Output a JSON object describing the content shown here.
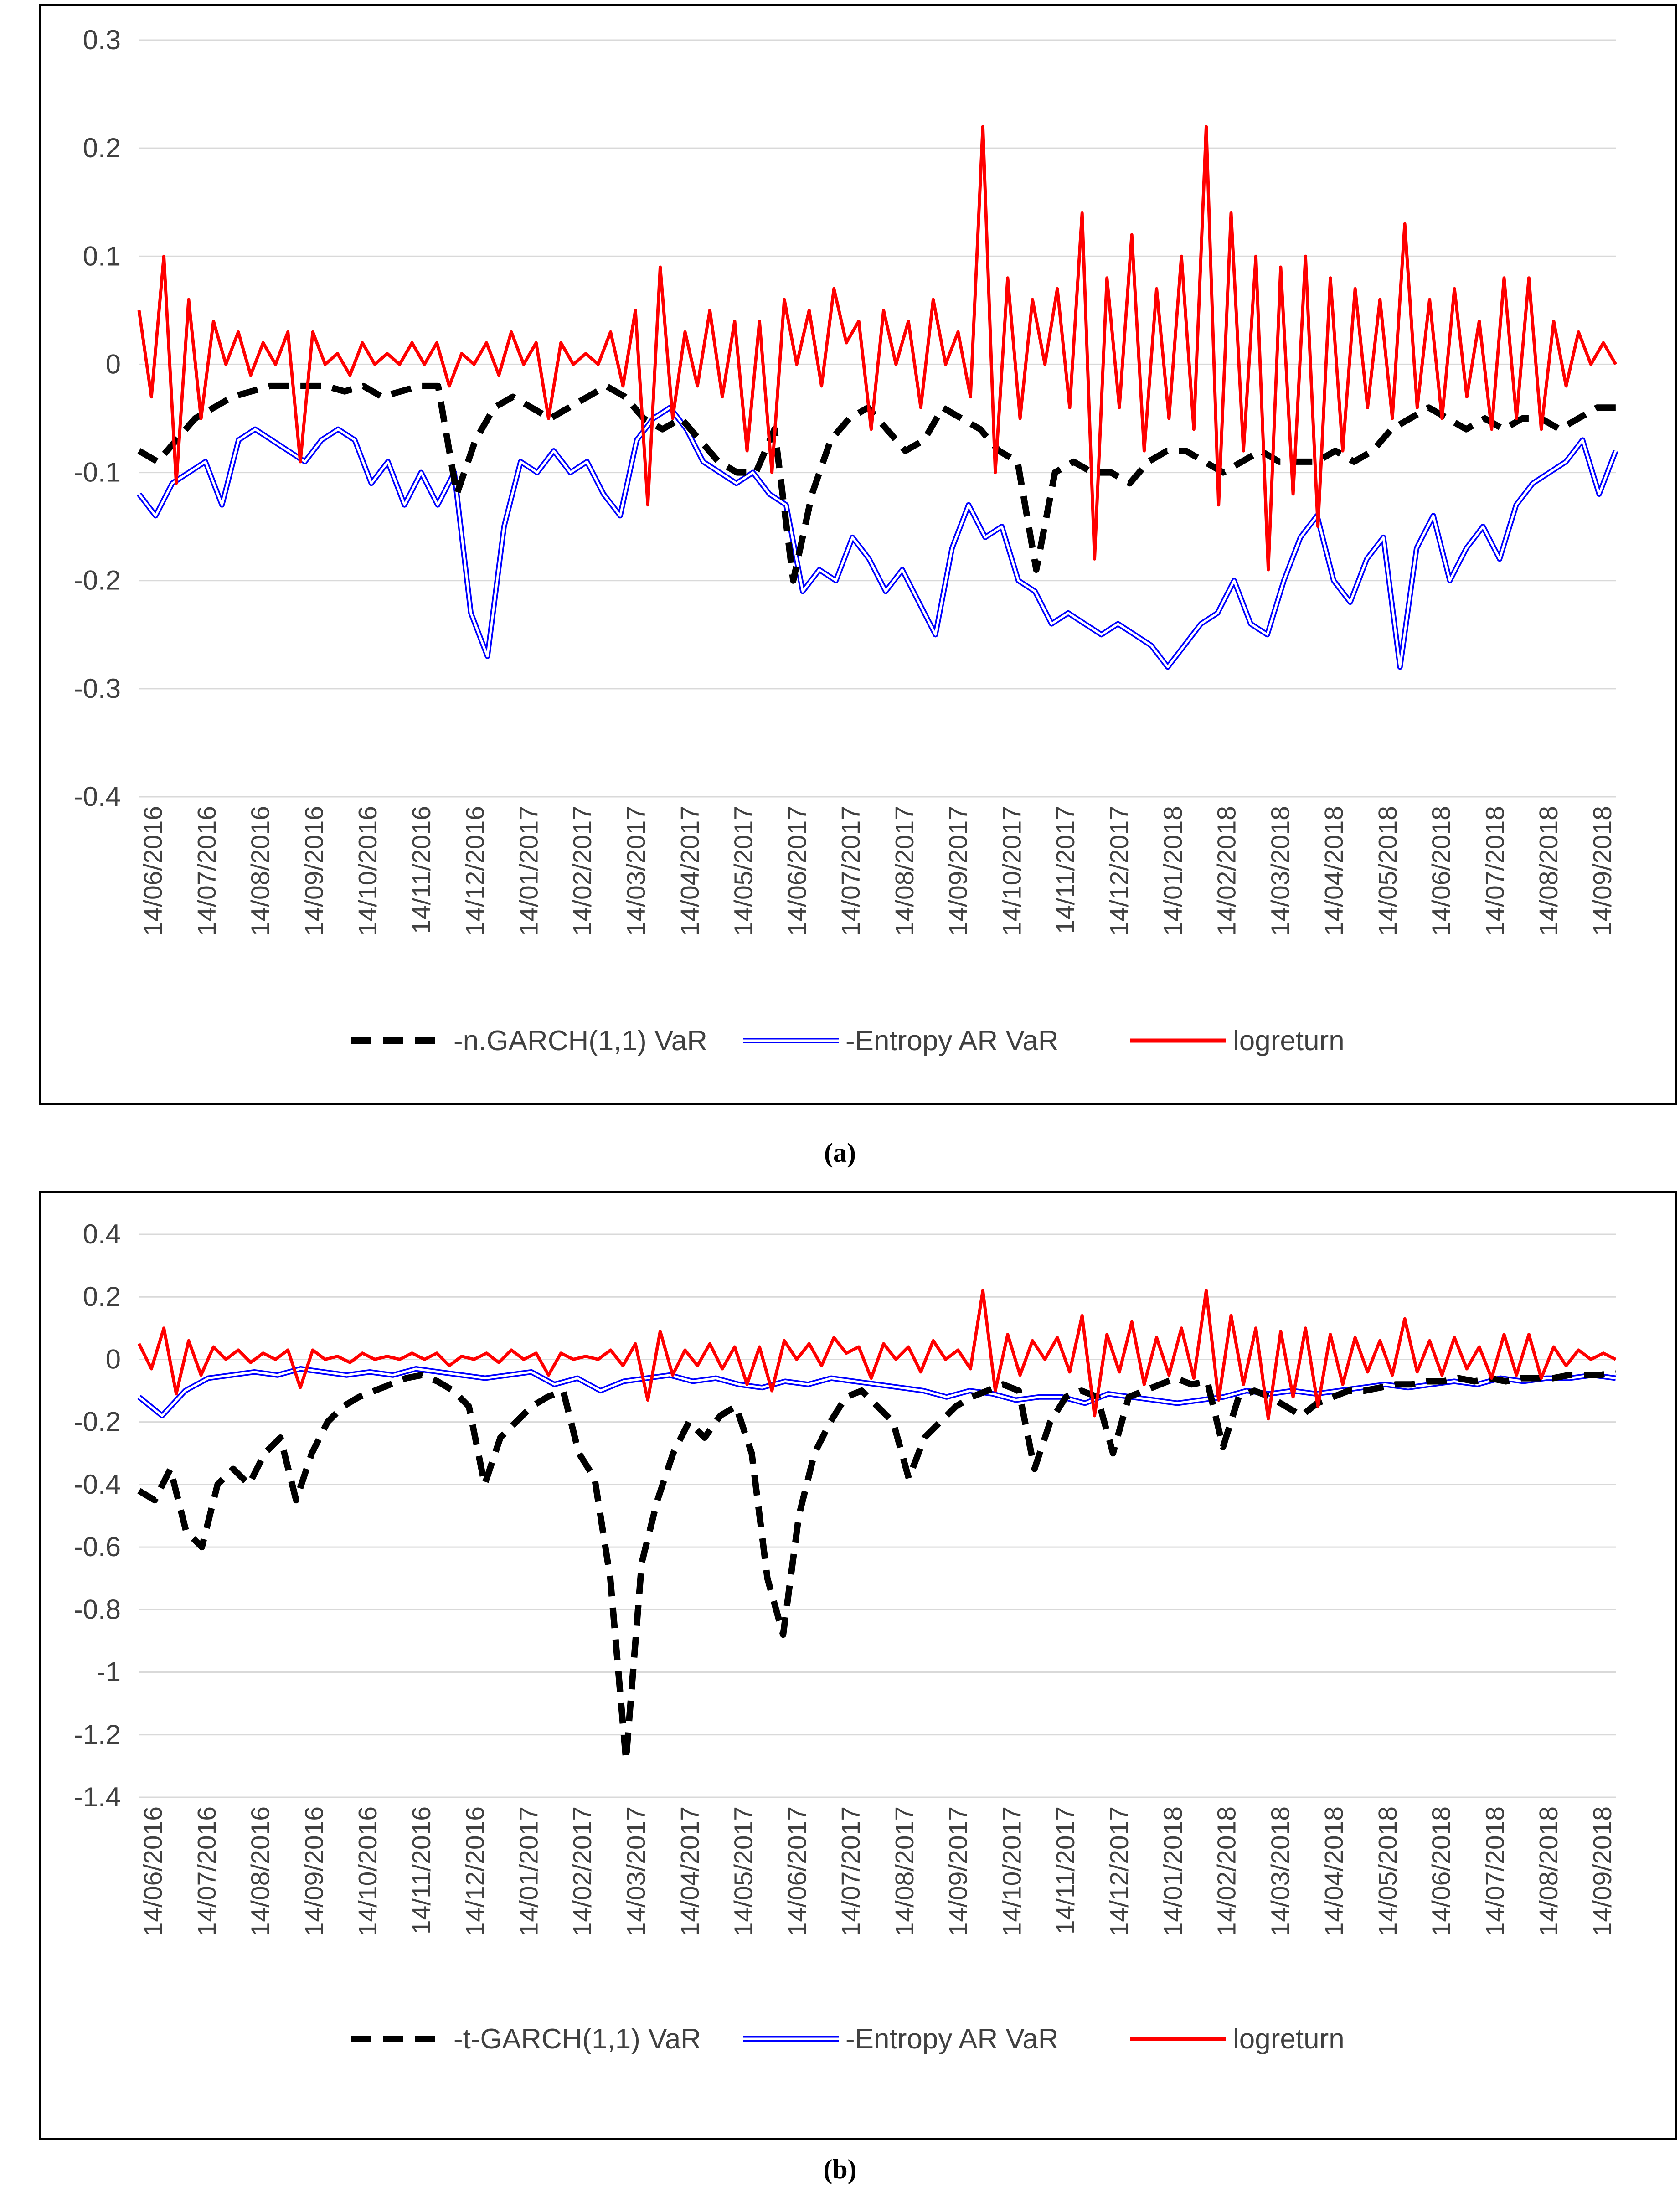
{
  "x_tick_labels": [
    "14/06/2016",
    "14/07/2016",
    "14/08/2016",
    "14/09/2016",
    "14/10/2016",
    "14/11/2016",
    "14/12/2016",
    "14/01/2017",
    "14/02/2017",
    "14/03/2017",
    "14/04/2017",
    "14/05/2017",
    "14/06/2017",
    "14/07/2017",
    "14/08/2017",
    "14/09/2017",
    "14/10/2017",
    "14/11/2017",
    "14/12/2017",
    "14/01/2018",
    "14/02/2018",
    "14/03/2018",
    "14/04/2018",
    "14/05/2018",
    "14/06/2018",
    "14/07/2018",
    "14/08/2018",
    "14/09/2018"
  ],
  "colors": {
    "garch": "#000000",
    "entropy": "#0000ff",
    "logreturn": "#ff0000",
    "grid": "#d9d9d9"
  },
  "chart_data": [
    {
      "panel": "a",
      "caption": "(a)",
      "type": "line",
      "ylim": [
        -0.4,
        0.3
      ],
      "yticks": [
        "0.3",
        "0.2",
        "0.1",
        "0",
        "-0.1",
        "-0.2",
        "-0.3",
        "-0.4"
      ],
      "ytick_values": [
        0.3,
        0.2,
        0.1,
        0,
        -0.1,
        -0.2,
        -0.3,
        -0.4
      ],
      "series": [
        {
          "name": "-n.GARCH(1,1) VaR",
          "style": "dashed",
          "color": "#000000",
          "values": [
            -0.08,
            -0.09,
            -0.07,
            -0.05,
            -0.04,
            -0.03,
            -0.025,
            -0.02,
            -0.02,
            -0.02,
            -0.02,
            -0.025,
            -0.02,
            -0.03,
            -0.025,
            -0.02,
            -0.02,
            -0.12,
            -0.07,
            -0.04,
            -0.03,
            -0.04,
            -0.05,
            -0.04,
            -0.03,
            -0.02,
            -0.03,
            -0.05,
            -0.06,
            -0.05,
            -0.07,
            -0.09,
            -0.1,
            -0.1,
            -0.06,
            -0.2,
            -0.12,
            -0.07,
            -0.05,
            -0.04,
            -0.06,
            -0.08,
            -0.07,
            -0.04,
            -0.05,
            -0.06,
            -0.08,
            -0.09,
            -0.19,
            -0.1,
            -0.09,
            -0.1,
            -0.1,
            -0.11,
            -0.09,
            -0.08,
            -0.08,
            -0.09,
            -0.1,
            -0.09,
            -0.08,
            -0.09,
            -0.09,
            -0.09,
            -0.08,
            -0.09,
            -0.08,
            -0.06,
            -0.05,
            -0.04,
            -0.05,
            -0.06,
            -0.05,
            -0.06,
            -0.05,
            -0.05,
            -0.06,
            -0.05,
            -0.04,
            -0.04
          ]
        },
        {
          "name": "-Entropy AR VaR",
          "style": "double",
          "color": "#0000ff",
          "values": [
            -0.12,
            -0.14,
            -0.11,
            -0.1,
            -0.09,
            -0.13,
            -0.07,
            -0.06,
            -0.07,
            -0.08,
            -0.09,
            -0.07,
            -0.06,
            -0.07,
            -0.11,
            -0.09,
            -0.13,
            -0.1,
            -0.13,
            -0.1,
            -0.23,
            -0.27,
            -0.15,
            -0.09,
            -0.1,
            -0.08,
            -0.1,
            -0.09,
            -0.12,
            -0.14,
            -0.07,
            -0.05,
            -0.04,
            -0.06,
            -0.09,
            -0.1,
            -0.11,
            -0.1,
            -0.12,
            -0.13,
            -0.21,
            -0.19,
            -0.2,
            -0.16,
            -0.18,
            -0.21,
            -0.19,
            -0.22,
            -0.25,
            -0.17,
            -0.13,
            -0.16,
            -0.15,
            -0.2,
            -0.21,
            -0.24,
            -0.23,
            -0.24,
            -0.25,
            -0.24,
            -0.25,
            -0.26,
            -0.28,
            -0.26,
            -0.24,
            -0.23,
            -0.2,
            -0.24,
            -0.25,
            -0.2,
            -0.16,
            -0.14,
            -0.2,
            -0.22,
            -0.18,
            -0.16,
            -0.28,
            -0.17,
            -0.14,
            -0.2,
            -0.17,
            -0.15,
            -0.18,
            -0.13,
            -0.11,
            -0.1,
            -0.09,
            -0.07,
            -0.12,
            -0.08
          ]
        },
        {
          "name": "logreturn",
          "style": "solid",
          "color": "#ff0000",
          "values": [
            0.05,
            -0.03,
            0.1,
            -0.11,
            0.06,
            -0.05,
            0.04,
            0.0,
            0.03,
            -0.01,
            0.02,
            0.0,
            0.03,
            -0.09,
            0.03,
            0.0,
            0.01,
            -0.01,
            0.02,
            0.0,
            0.01,
            0.0,
            0.02,
            0.0,
            0.02,
            -0.02,
            0.01,
            0.0,
            0.02,
            -0.01,
            0.03,
            0.0,
            0.02,
            -0.05,
            0.02,
            0.0,
            0.01,
            0.0,
            0.03,
            -0.02,
            0.05,
            -0.13,
            0.09,
            -0.05,
            0.03,
            -0.02,
            0.05,
            -0.03,
            0.04,
            -0.08,
            0.04,
            -0.1,
            0.06,
            0.0,
            0.05,
            -0.02,
            0.07,
            0.02,
            0.04,
            -0.06,
            0.05,
            0.0,
            0.04,
            -0.04,
            0.06,
            0.0,
            0.03,
            -0.03,
            0.22,
            -0.1,
            0.08,
            -0.05,
            0.06,
            0.0,
            0.07,
            -0.04,
            0.14,
            -0.18,
            0.08,
            -0.04,
            0.12,
            -0.08,
            0.07,
            -0.05,
            0.1,
            -0.06,
            0.22,
            -0.13,
            0.14,
            -0.08,
            0.1,
            -0.19,
            0.09,
            -0.12,
            0.1,
            -0.15,
            0.08,
            -0.08,
            0.07,
            -0.04,
            0.06,
            -0.05,
            0.13,
            -0.04,
            0.06,
            -0.05,
            0.07,
            -0.03,
            0.04,
            -0.06,
            0.08,
            -0.05,
            0.08,
            -0.06,
            0.04,
            -0.02,
            0.03,
            0.0,
            0.02,
            0.0
          ]
        }
      ],
      "legend": [
        "-n.GARCH(1,1) VaR",
        "-Entropy AR VaR",
        "logreturn"
      ],
      "legend_position": "bottom"
    },
    {
      "panel": "b",
      "caption": "(b)",
      "type": "line",
      "ylim": [
        -1.4,
        0.4
      ],
      "yticks": [
        "0.4",
        "0.2",
        "0",
        "-0.2",
        "-0.4",
        "-0.6",
        "-0.8",
        "-1",
        "-1.2",
        "-1.4"
      ],
      "ytick_values": [
        0.4,
        0.2,
        0,
        -0.2,
        -0.4,
        -0.6,
        -0.8,
        -1.0,
        -1.2,
        -1.4
      ],
      "series": [
        {
          "name": "-t-GARCH(1,1) VaR",
          "style": "dashed",
          "color": "#000000",
          "values": [
            -0.42,
            -0.45,
            -0.35,
            -0.55,
            -0.6,
            -0.4,
            -0.35,
            -0.4,
            -0.3,
            -0.25,
            -0.45,
            -0.3,
            -0.2,
            -0.15,
            -0.12,
            -0.1,
            -0.08,
            -0.06,
            -0.05,
            -0.07,
            -0.1,
            -0.15,
            -0.4,
            -0.25,
            -0.2,
            -0.15,
            -0.12,
            -0.1,
            -0.3,
            -0.38,
            -0.7,
            -1.28,
            -0.65,
            -0.45,
            -0.3,
            -0.2,
            -0.25,
            -0.18,
            -0.15,
            -0.3,
            -0.7,
            -0.88,
            -0.5,
            -0.3,
            -0.2,
            -0.12,
            -0.1,
            -0.15,
            -0.2,
            -0.38,
            -0.25,
            -0.2,
            -0.15,
            -0.12,
            -0.1,
            -0.08,
            -0.1,
            -0.35,
            -0.2,
            -0.12,
            -0.1,
            -0.12,
            -0.3,
            -0.12,
            -0.1,
            -0.08,
            -0.06,
            -0.08,
            -0.07,
            -0.28,
            -0.12,
            -0.1,
            -0.12,
            -0.15,
            -0.18,
            -0.14,
            -0.12,
            -0.1,
            -0.1,
            -0.09,
            -0.08,
            -0.08,
            -0.07,
            -0.07,
            -0.06,
            -0.07,
            -0.06,
            -0.07,
            -0.06,
            -0.06,
            -0.06,
            -0.05,
            -0.05,
            -0.05,
            -0.04
          ]
        },
        {
          "name": "-Entropy AR VaR",
          "style": "double",
          "color": "#0000ff",
          "values": [
            -0.12,
            -0.18,
            -0.1,
            -0.06,
            -0.05,
            -0.04,
            -0.05,
            -0.03,
            -0.04,
            -0.05,
            -0.04,
            -0.05,
            -0.03,
            -0.04,
            -0.05,
            -0.06,
            -0.05,
            -0.04,
            -0.08,
            -0.06,
            -0.1,
            -0.07,
            -0.06,
            -0.05,
            -0.07,
            -0.06,
            -0.08,
            -0.09,
            -0.07,
            -0.08,
            -0.06,
            -0.07,
            -0.08,
            -0.09,
            -0.1,
            -0.12,
            -0.1,
            -0.11,
            -0.13,
            -0.12,
            -0.12,
            -0.14,
            -0.11,
            -0.12,
            -0.13,
            -0.14,
            -0.13,
            -0.12,
            -0.1,
            -0.11,
            -0.1,
            -0.11,
            -0.1,
            -0.09,
            -0.08,
            -0.09,
            -0.08,
            -0.07,
            -0.08,
            -0.06,
            -0.07,
            -0.06,
            -0.06,
            -0.05,
            -0.06
          ]
        },
        {
          "name": "logreturn",
          "style": "solid",
          "color": "#ff0000",
          "values": [
            0.05,
            -0.03,
            0.1,
            -0.11,
            0.06,
            -0.05,
            0.04,
            0.0,
            0.03,
            -0.01,
            0.02,
            0.0,
            0.03,
            -0.09,
            0.03,
            0.0,
            0.01,
            -0.01,
            0.02,
            0.0,
            0.01,
            0.0,
            0.02,
            0.0,
            0.02,
            -0.02,
            0.01,
            0.0,
            0.02,
            -0.01,
            0.03,
            0.0,
            0.02,
            -0.05,
            0.02,
            0.0,
            0.01,
            0.0,
            0.03,
            -0.02,
            0.05,
            -0.13,
            0.09,
            -0.05,
            0.03,
            -0.02,
            0.05,
            -0.03,
            0.04,
            -0.08,
            0.04,
            -0.1,
            0.06,
            0.0,
            0.05,
            -0.02,
            0.07,
            0.02,
            0.04,
            -0.06,
            0.05,
            0.0,
            0.04,
            -0.04,
            0.06,
            0.0,
            0.03,
            -0.03,
            0.22,
            -0.1,
            0.08,
            -0.05,
            0.06,
            0.0,
            0.07,
            -0.04,
            0.14,
            -0.18,
            0.08,
            -0.04,
            0.12,
            -0.08,
            0.07,
            -0.05,
            0.1,
            -0.06,
            0.22,
            -0.13,
            0.14,
            -0.08,
            0.1,
            -0.19,
            0.09,
            -0.12,
            0.1,
            -0.15,
            0.08,
            -0.08,
            0.07,
            -0.04,
            0.06,
            -0.05,
            0.13,
            -0.04,
            0.06,
            -0.05,
            0.07,
            -0.03,
            0.04,
            -0.06,
            0.08,
            -0.05,
            0.08,
            -0.06,
            0.04,
            -0.02,
            0.03,
            0.0,
            0.02,
            0.0
          ]
        }
      ],
      "legend": [
        "-t-GARCH(1,1) VaR",
        "-Entropy AR VaR",
        "logreturn"
      ],
      "legend_position": "bottom"
    }
  ]
}
